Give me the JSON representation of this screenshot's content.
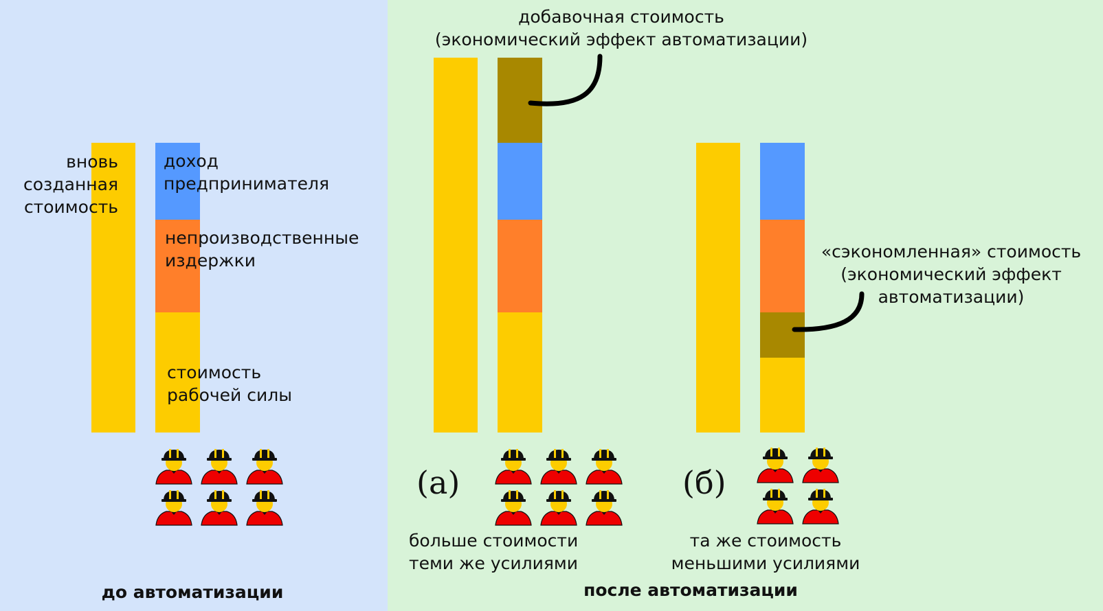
{
  "colors": {
    "background_before": "#d4e4fb",
    "background_after": "#d8f3d8",
    "new_value": "#fdcc00",
    "entrepreneur_income": "#5599ff",
    "unproductive_costs": "#ff7f2a",
    "labor_cost": "#fdcc00",
    "automation_effect": "#a88800",
    "worker_body": "#ee0000",
    "worker_helmet": "#111111",
    "worker_face": "#fdcc00"
  },
  "before": {
    "new_value_label": "вновь созданная стоимость",
    "income_label": "доход предпринимателя",
    "costs_label": "непроизводственные издержки",
    "labor_label": "стоимость рабочей силы",
    "worker_count": 6,
    "caption": "до автоматизации"
  },
  "after": {
    "added_value_label_line1": "добавочная стоимость",
    "added_value_label_line2": "(экономический эффект автоматизации)",
    "case_a_marker": "(а)",
    "case_a_caption_line1": "больше стоимости",
    "case_a_caption_line2": "теми же усилиями",
    "case_a_worker_count": 6,
    "saved_value_label_line1": "«сэкономленная» стоимость",
    "saved_value_label_line2": "(экономический эффект",
    "saved_value_label_line3": "автоматизации)",
    "case_b_marker": "(б)",
    "case_b_caption_line1": "та же стоимость",
    "case_b_caption_line2": "меньшими усилиями",
    "case_b_worker_count": 4,
    "caption": "после автоматизации"
  }
}
